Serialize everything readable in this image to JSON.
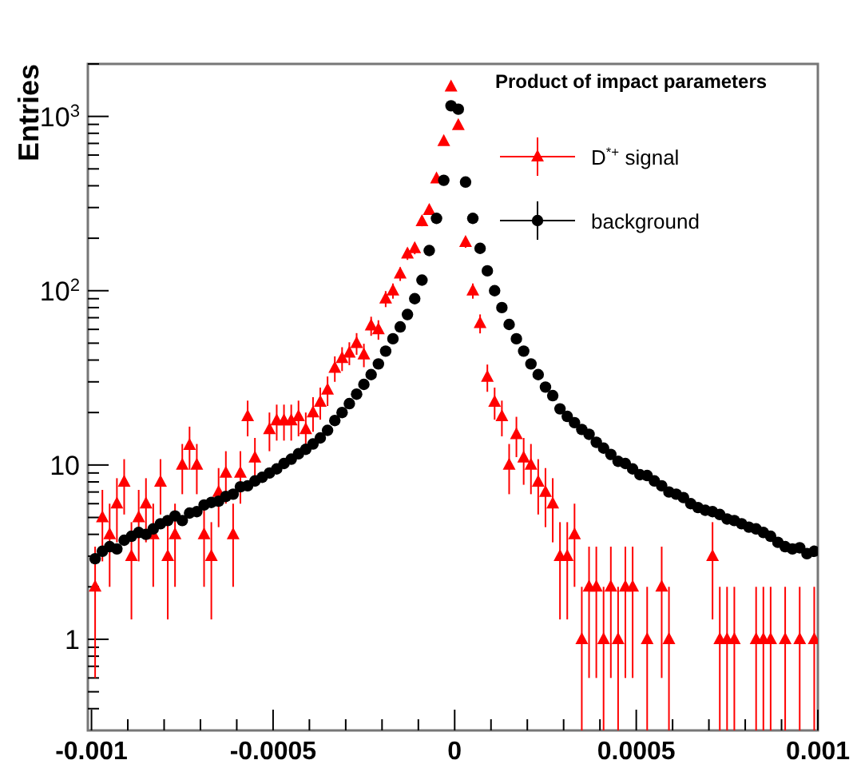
{
  "chart_data": {
    "type": "scatter",
    "ylabel": "Entries",
    "legend_title": "Product of impact parameters",
    "legend": "top right",
    "grid": false,
    "log": "y",
    "xlim": [
      -0.00101,
      0.001
    ],
    "ylim": [
      0.3,
      2000
    ],
    "xticks": [
      -0.001,
      {
        "value": -0.0009,
        "label": null
      },
      {
        "value": -0.0008,
        "label": null
      },
      {
        "value": -0.0007,
        "label": null
      },
      {
        "value": -0.0006,
        "label": null
      },
      -0.0005,
      {
        "value": -0.0004,
        "label": null
      },
      {
        "value": -0.0003,
        "label": null
      },
      {
        "value": -0.0002,
        "label": null
      },
      {
        "value": -0.0001,
        "label": null
      },
      0,
      {
        "value": 0.0001,
        "label": null
      },
      {
        "value": 0.0002,
        "label": null
      },
      {
        "value": 0.0003,
        "label": null
      },
      {
        "value": 0.0004,
        "label": null
      },
      0.0005,
      {
        "value": 0.0006,
        "label": null
      },
      {
        "value": 0.0007,
        "label": null
      },
      {
        "value": 0.0008,
        "label": null
      },
      {
        "value": 0.0009,
        "label": null
      },
      0.001
    ],
    "yticks": [
      {
        "value": 0.4,
        "label": null
      },
      {
        "value": 0.5,
        "label": null
      },
      {
        "value": 0.6,
        "label": null
      },
      {
        "value": 0.7,
        "label": null
      },
      {
        "value": 0.8,
        "label": null
      },
      {
        "value": 0.9,
        "label": null
      },
      1,
      {
        "value": 2,
        "label": null
      },
      {
        "value": 3,
        "label": null
      },
      {
        "value": 4,
        "label": null
      },
      {
        "value": 5,
        "label": null
      },
      {
        "value": 6,
        "label": null
      },
      {
        "value": 7,
        "label": null
      },
      {
        "value": 8,
        "label": null
      },
      {
        "value": 9,
        "label": null
      },
      10,
      {
        "value": 20,
        "label": null
      },
      {
        "value": 30,
        "label": null
      },
      {
        "value": 40,
        "label": null
      },
      {
        "value": 50,
        "label": null
      },
      {
        "value": 60,
        "label": null
      },
      {
        "value": 70,
        "label": null
      },
      {
        "value": 80,
        "label": null
      },
      {
        "value": 90,
        "label": null
      },
      {
        "value": 100,
        "label": "10$^{2}$"
      },
      {
        "value": 200,
        "label": null
      },
      {
        "value": 300,
        "label": null
      },
      {
        "value": 400,
        "label": null
      },
      {
        "value": 500,
        "label": null
      },
      {
        "value": 600,
        "label": null
      },
      {
        "value": 700,
        "label": null
      },
      {
        "value": 800,
        "label": null
      },
      {
        "value": 900,
        "label": null
      },
      {
        "value": 1000,
        "label": "10$^{3}$"
      },
      {
        "value": 2000,
        "label": null
      }
    ],
    "x": [
      -0.00099,
      -0.00097,
      -0.00095,
      -0.00093,
      -0.00091,
      -0.00089,
      -0.00087,
      -0.00085,
      -0.00083,
      -0.00081,
      -0.00079,
      -0.00077,
      -0.00075,
      -0.00073,
      -0.00071,
      -0.00069,
      -0.00067,
      -0.00065,
      -0.00063,
      -0.00061,
      -0.00059,
      -0.00057,
      -0.00055,
      -0.00053,
      -0.00051,
      -0.00049,
      -0.00047,
      -0.00045,
      -0.00043,
      -0.00041,
      -0.00039,
      -0.00037,
      -0.00035,
      -0.00033,
      -0.00031,
      -0.00029,
      -0.00027,
      -0.00025,
      -0.00023,
      -0.00021,
      -0.00019,
      -0.00017,
      -0.00015,
      -0.00013,
      -0.00011,
      -9e-05,
      -7e-05,
      -5e-05,
      -3e-05,
      -1e-05,
      1e-05,
      3e-05,
      5e-05,
      7e-05,
      9e-05,
      0.00011,
      0.00013,
      0.00015,
      0.00017,
      0.00019,
      0.00021,
      0.00023,
      0.00025,
      0.00027,
      0.00029,
      0.00031,
      0.00033,
      0.00035,
      0.00037,
      0.00039,
      0.00041,
      0.00043,
      0.00045,
      0.00047,
      0.00049,
      0.00051,
      0.00053,
      0.00055,
      0.00057,
      0.00059,
      0.00061,
      0.00063,
      0.00065,
      0.00067,
      0.00069,
      0.00071,
      0.00073,
      0.00075,
      0.00077,
      0.00079,
      0.00081,
      0.00083,
      0.00085,
      0.00087,
      0.00089,
      0.00091,
      0.00093,
      0.00095,
      0.00097,
      0.00099
    ],
    "series": [
      {
        "name": "D$^{*+}$ signal",
        "color": "#ff0000",
        "marker": "triangle",
        "values": [
          2,
          5,
          4,
          6,
          8,
          3,
          5,
          6,
          4,
          8,
          3,
          4,
          10,
          13,
          10,
          4,
          3,
          7,
          9,
          4,
          9,
          19,
          11,
          null,
          16,
          18,
          18,
          18,
          19,
          16,
          20,
          23,
          27,
          36,
          41,
          44,
          50,
          43,
          63,
          60,
          90,
          100,
          125,
          163,
          175,
          250,
          290,
          440,
          720,
          1480,
          890,
          190,
          100,
          65,
          32,
          23,
          19,
          10,
          15,
          11,
          10,
          8,
          7,
          6,
          3,
          3,
          4,
          1,
          2,
          2,
          1,
          2,
          1,
          2,
          2,
          null,
          1,
          null,
          2,
          1,
          null,
          null,
          null,
          null,
          null,
          3,
          1,
          1,
          1,
          null,
          null,
          1,
          1,
          1,
          null,
          1,
          null,
          1,
          null,
          1
        ],
        "errors": [
          [
            0.6,
            3.4
          ],
          [
            2.8,
            7.2
          ],
          [
            2,
            6
          ],
          [
            3.6,
            8.4
          ],
          [
            5.2,
            10.8
          ],
          [
            1.3,
            4.7
          ],
          [
            2.8,
            7.2
          ],
          [
            3.6,
            8.4
          ],
          [
            2,
            6
          ],
          [
            5.2,
            10.8
          ],
          [
            1.3,
            4.7
          ],
          [
            2,
            6
          ],
          [
            6.8,
            13.2
          ],
          [
            9.4,
            16.6
          ],
          [
            6.8,
            13.2
          ],
          [
            2,
            6
          ],
          [
            1.3,
            4.7
          ],
          [
            4.4,
            9.6
          ],
          [
            6,
            12
          ],
          [
            2,
            6
          ],
          [
            6,
            12
          ],
          [
            14.6,
            23.4
          ],
          [
            7.7,
            14.3
          ],
          null,
          [
            12,
            20
          ],
          [
            13.8,
            22.2
          ],
          [
            13.8,
            22.2
          ],
          [
            13.8,
            22.2
          ],
          [
            14.6,
            23.4
          ],
          [
            12,
            20
          ],
          [
            15.5,
            24.5
          ],
          [
            18.2,
            27.8
          ],
          [
            21.8,
            32.2
          ],
          [
            30,
            42
          ],
          [
            34.6,
            47.4
          ],
          [
            37.4,
            50.6
          ],
          [
            42.9,
            57.1
          ],
          [
            36.4,
            49.6
          ],
          [
            55.1,
            70.9
          ],
          [
            52.3,
            67.7
          ],
          [
            80.5,
            99.5
          ],
          [
            90,
            110
          ],
          [
            113.8,
            136.2
          ],
          [
            150.2,
            175.8
          ],
          [
            161.8,
            188.2
          ],
          [
            234.2,
            265.8
          ],
          [
            273,
            307
          ],
          [
            419,
            461
          ],
          [
            693,
            747
          ],
          [
            1442,
            1518
          ],
          [
            860,
            920
          ],
          [
            176.2,
            203.8
          ],
          [
            90,
            110
          ],
          [
            56.9,
            73.1
          ],
          [
            26.3,
            37.7
          ],
          [
            18.2,
            27.8
          ],
          [
            14.6,
            23.4
          ],
          [
            6.8,
            13.2
          ],
          [
            11.1,
            18.9
          ],
          [
            7.7,
            14.3
          ],
          [
            6.8,
            13.2
          ],
          [
            5.2,
            10.8
          ],
          [
            4.4,
            9.6
          ],
          [
            3.6,
            8.4
          ],
          [
            1.3,
            4.7
          ],
          [
            1.3,
            4.7
          ],
          [
            2,
            6
          ],
          [
            0.3,
            2
          ],
          [
            0.6,
            3.4
          ],
          [
            0.6,
            3.4
          ],
          [
            0.3,
            2
          ],
          [
            0.6,
            3.4
          ],
          [
            0.3,
            2
          ],
          [
            0.6,
            3.4
          ],
          [
            0.6,
            3.4
          ],
          null,
          [
            0.3,
            2
          ],
          null,
          [
            0.6,
            3.4
          ],
          [
            0.3,
            2
          ],
          null,
          null,
          null,
          null,
          null,
          [
            1.3,
            4.7
          ],
          [
            0.3,
            2
          ],
          [
            0.3,
            2
          ],
          [
            0.3,
            2
          ],
          null,
          null,
          [
            0.3,
            2
          ],
          [
            0.3,
            2
          ],
          [
            0.3,
            2
          ],
          null,
          [
            0.3,
            2
          ],
          null,
          [
            0.3,
            2
          ],
          null,
          [
            0.3,
            2
          ]
        ]
      },
      {
        "name": "background",
        "color": "#000000",
        "marker": "circle",
        "values": [
          2.9,
          3.2,
          3.4,
          3.3,
          3.7,
          3.9,
          4.1,
          4.0,
          4.3,
          4.6,
          4.8,
          5.1,
          4.8,
          5.3,
          5.4,
          5.9,
          6.1,
          6.2,
          6.6,
          6.8,
          7.5,
          7.6,
          8.1,
          8.5,
          9.0,
          9.5,
          10.2,
          10.8,
          11.6,
          12.3,
          13.2,
          14.3,
          15.8,
          18,
          20,
          22.5,
          25.5,
          29,
          33,
          38,
          45,
          53,
          62,
          73,
          90,
          115,
          170,
          260,
          430,
          1150,
          1100,
          420,
          260,
          175,
          130,
          100,
          80,
          64,
          53,
          45,
          38,
          33,
          28,
          25,
          21,
          19,
          17.5,
          16,
          15,
          13.5,
          12.5,
          11.5,
          10.5,
          10.2,
          9.5,
          8.8,
          8.7,
          8.1,
          7.6,
          7.0,
          6.8,
          6.5,
          6.0,
          5.7,
          5.5,
          5.4,
          5.2,
          4.9,
          4.8,
          4.6,
          4.4,
          4.3,
          4.1,
          3.9,
          3.6,
          3.4,
          3.3,
          3.35,
          3.1,
          3.2
        ]
      }
    ]
  }
}
